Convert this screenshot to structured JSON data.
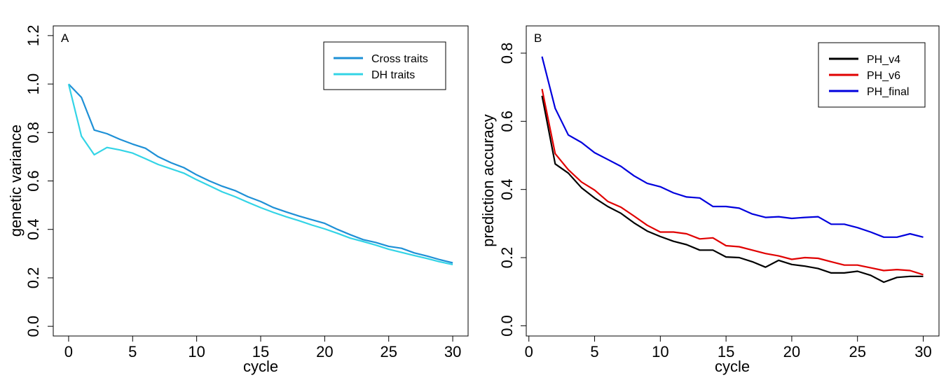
{
  "colors": {
    "cross": "#1e90d6",
    "dh": "#33d4e6",
    "v4": "#000000",
    "v6": "#e00000",
    "final": "#0000dd"
  },
  "chart_data": [
    {
      "type": "line",
      "panel_label": "A",
      "xlabel": "cycle",
      "ylabel": "genetic variance",
      "xlim": [
        -1.2,
        31.2
      ],
      "ylim": [
        -0.04,
        1.24
      ],
      "xticks": [
        0,
        5,
        10,
        15,
        20,
        25,
        30
      ],
      "xtick_labels": [
        "0",
        "5",
        "10",
        "15",
        "20",
        "25",
        "30"
      ],
      "yticks": [
        0.0,
        0.2,
        0.4,
        0.6,
        0.8,
        1.0,
        1.2
      ],
      "ytick_labels": [
        "0.0",
        "0.2",
        "0.4",
        "0.6",
        "0.8",
        "1.0",
        "1.2"
      ],
      "legend_position": "top-right",
      "grid": false,
      "x": [
        0,
        1,
        2,
        3,
        4,
        5,
        6,
        7,
        8,
        9,
        10,
        11,
        12,
        13,
        14,
        15,
        16,
        17,
        18,
        19,
        20,
        21,
        22,
        23,
        24,
        25,
        26,
        27,
        28,
        29,
        30
      ],
      "series": [
        {
          "name": "Cross traits",
          "color_key": "cross",
          "values": [
            1.0,
            0.945,
            0.81,
            0.795,
            0.772,
            0.752,
            0.735,
            0.7,
            0.675,
            0.655,
            0.625,
            0.6,
            0.578,
            0.56,
            0.535,
            0.515,
            0.49,
            0.472,
            0.455,
            0.44,
            0.425,
            0.4,
            0.378,
            0.358,
            0.346,
            0.33,
            0.322,
            0.303,
            0.29,
            0.275,
            0.262
          ]
        },
        {
          "name": "DH traits",
          "color_key": "dh",
          "values": [
            1.0,
            0.785,
            0.708,
            0.738,
            0.728,
            0.715,
            0.692,
            0.668,
            0.65,
            0.632,
            0.605,
            0.58,
            0.555,
            0.535,
            0.512,
            0.49,
            0.47,
            0.452,
            0.436,
            0.418,
            0.402,
            0.384,
            0.364,
            0.35,
            0.335,
            0.318,
            0.305,
            0.292,
            0.28,
            0.266,
            0.255
          ]
        }
      ]
    },
    {
      "type": "line",
      "panel_label": "B",
      "xlabel": "cycle",
      "ylabel": "prediction accuracy",
      "xlim": [
        -0.2,
        31.2
      ],
      "ylim": [
        -0.03,
        0.88
      ],
      "xticks": [
        0,
        5,
        10,
        15,
        20,
        25,
        30
      ],
      "xtick_labels": [
        "0",
        "5",
        "10",
        "15",
        "20",
        "25",
        "30"
      ],
      "yticks": [
        0.0,
        0.2,
        0.4,
        0.6,
        0.8
      ],
      "ytick_labels": [
        "0.0",
        "0.2",
        "0.4",
        "0.6",
        "0.8"
      ],
      "legend_position": "top-right",
      "grid": false,
      "x": [
        1,
        2,
        3,
        4,
        5,
        6,
        7,
        8,
        9,
        10,
        11,
        12,
        13,
        14,
        15,
        16,
        17,
        18,
        19,
        20,
        21,
        22,
        23,
        24,
        25,
        26,
        27,
        28,
        29,
        30
      ],
      "series": [
        {
          "name": "PH_v4",
          "color_key": "v4",
          "values": [
            0.675,
            0.475,
            0.448,
            0.405,
            0.375,
            0.35,
            0.33,
            0.302,
            0.278,
            0.262,
            0.248,
            0.238,
            0.222,
            0.222,
            0.202,
            0.2,
            0.188,
            0.172,
            0.192,
            0.18,
            0.175,
            0.168,
            0.155,
            0.155,
            0.16,
            0.148,
            0.128,
            0.142,
            0.145,
            0.145
          ]
        },
        {
          "name": "PH_v6",
          "color_key": "v6",
          "values": [
            0.695,
            0.505,
            0.458,
            0.422,
            0.398,
            0.365,
            0.348,
            0.322,
            0.295,
            0.275,
            0.275,
            0.27,
            0.255,
            0.258,
            0.235,
            0.232,
            0.222,
            0.212,
            0.205,
            0.195,
            0.2,
            0.198,
            0.188,
            0.178,
            0.178,
            0.17,
            0.162,
            0.165,
            0.162,
            0.15
          ]
        },
        {
          "name": "PH_final",
          "color_key": "final",
          "values": [
            0.79,
            0.638,
            0.56,
            0.538,
            0.508,
            0.488,
            0.468,
            0.44,
            0.418,
            0.408,
            0.39,
            0.378,
            0.375,
            0.35,
            0.35,
            0.345,
            0.328,
            0.318,
            0.32,
            0.315,
            0.318,
            0.32,
            0.298,
            0.298,
            0.288,
            0.275,
            0.26,
            0.26,
            0.27,
            0.26
          ]
        }
      ]
    }
  ]
}
